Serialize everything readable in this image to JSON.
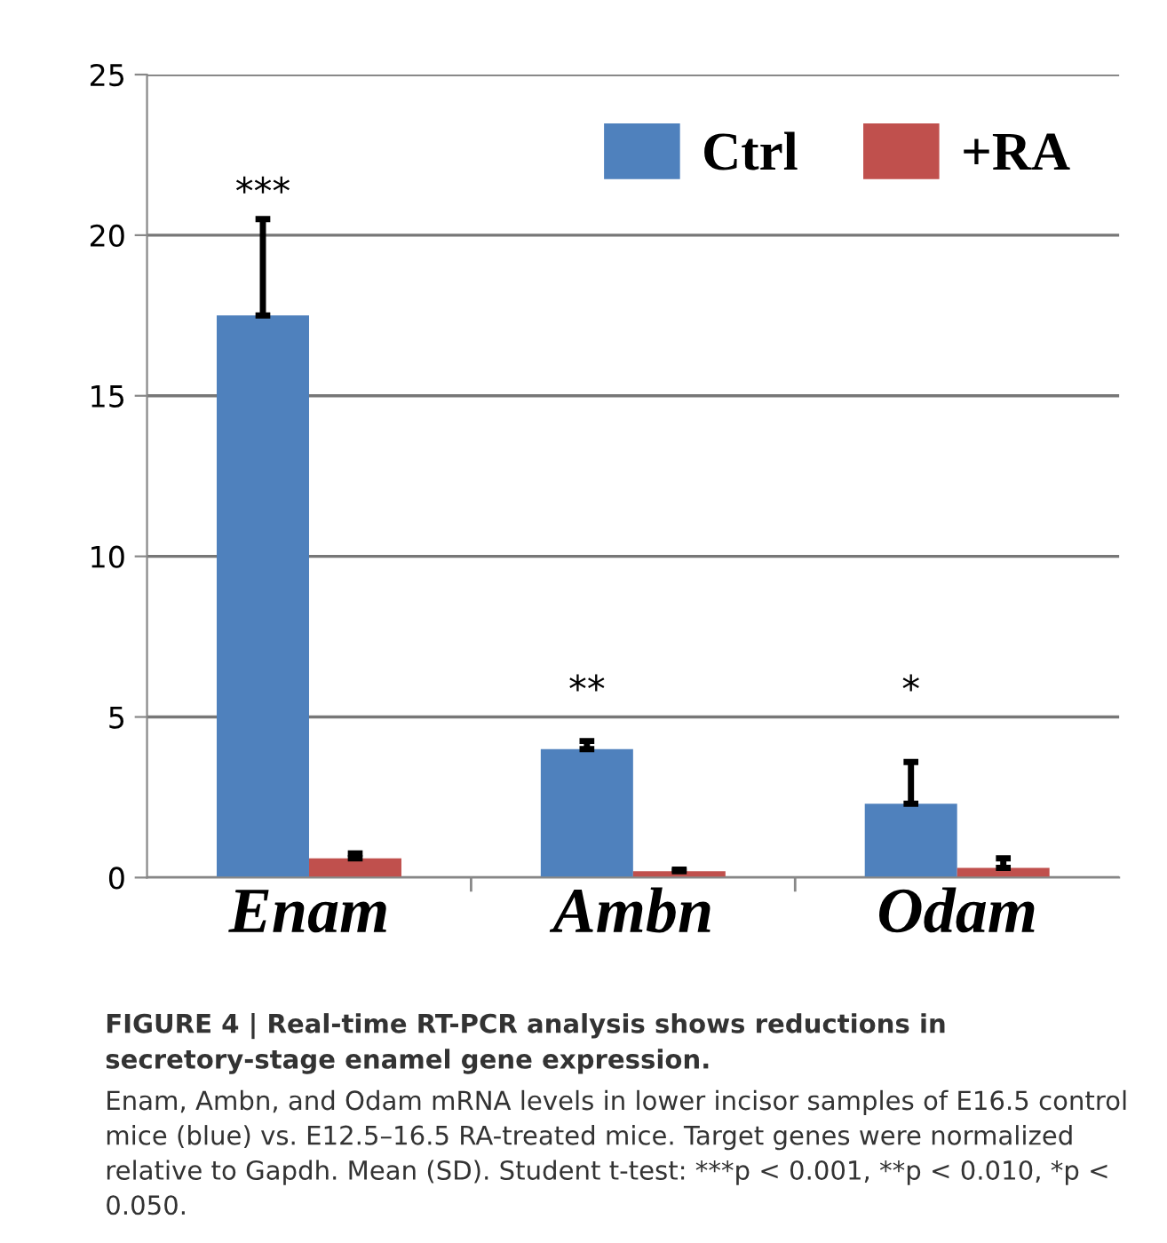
{
  "chart_data": {
    "type": "bar",
    "categories": [
      "Enam",
      "Ambn",
      "Odam"
    ],
    "series": [
      {
        "name": "Ctrl",
        "color": "#4f81bd",
        "values": [
          17.5,
          4.0,
          2.3
        ],
        "errors": [
          [
            17.5,
            20.5
          ],
          [
            4.0,
            4.25
          ],
          [
            2.3,
            3.6
          ]
        ]
      },
      {
        "name": "+RA",
        "color": "#c0504d",
        "values": [
          0.6,
          0.2,
          0.3
        ],
        "errors": [
          [
            0.6,
            0.75
          ],
          [
            0.2,
            0.25
          ],
          [
            0.3,
            0.6
          ]
        ]
      }
    ],
    "ylim": [
      0,
      25
    ],
    "yticks": [
      0,
      5,
      10,
      15,
      20,
      25
    ],
    "grid": "y",
    "legend": "top right",
    "annotations": [
      "***",
      "**",
      "*",
      "FIGURE 4 | Real-time RT-PCR analysis shows reductions in secretory-stage enamel gene expression.",
      "Enam, Ambn, and Odam mRNA levels in lower incisor samples of E16.5 control mice (blue) vs. E12.5–16.5 RA-treated mice. Target genes were normalized relative to Gapdh. Mean (SD). Student t-test: ***p < 0.001, **p < 0.010, *p < 0.050."
    ]
  }
}
